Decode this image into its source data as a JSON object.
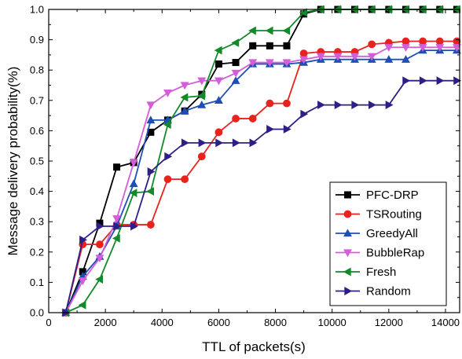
{
  "chart_data": {
    "type": "line",
    "title": "",
    "xlabel": "TTL of packets(s)",
    "ylabel": "Message delivery probability(%)",
    "xlim": [
      0,
      14500
    ],
    "ylim": [
      0,
      1.0
    ],
    "xticks": [
      0,
      2000,
      4000,
      6000,
      8000,
      10000,
      12000,
      14000
    ],
    "yticks": [
      0.0,
      0.1,
      0.2,
      0.3,
      0.4,
      0.5,
      0.6,
      0.7,
      0.8,
      0.9,
      1.0
    ],
    "xtick_labels": [
      "0",
      "2000",
      "4000",
      "6000",
      "8000",
      "10000",
      "12000",
      "14000"
    ],
    "ytick_labels": [
      "0.0",
      "0.1",
      "0.2",
      "0.3",
      "0.4",
      "0.5",
      "0.6",
      "0.7",
      "0.8",
      "0.9",
      "1.0"
    ],
    "grid": false,
    "legend_position": "bottom-right",
    "x": [
      600,
      1200,
      1800,
      2400,
      3000,
      3600,
      4200,
      4800,
      5400,
      6000,
      6600,
      7200,
      7800,
      8400,
      9000,
      9600,
      10200,
      10800,
      11400,
      12000,
      12600,
      13200,
      13800,
      14400
    ],
    "series": [
      {
        "name": "PFC-DRP",
        "color": "#000000",
        "marker": "square",
        "values": [
          0,
          0.135,
          0.295,
          0.48,
          0.495,
          0.595,
          0.635,
          0.665,
          0.72,
          0.82,
          0.825,
          0.88,
          0.88,
          0.88,
          0.985,
          1.0,
          1.0,
          1.0,
          1.0,
          1.0,
          1.0,
          1.0,
          1.0,
          1.0
        ]
      },
      {
        "name": "TSRouting",
        "color": "#e8231d",
        "marker": "circle",
        "values": [
          0,
          0.225,
          0.225,
          0.29,
          0.29,
          0.29,
          0.44,
          0.44,
          0.515,
          0.595,
          0.64,
          0.64,
          0.69,
          0.69,
          0.855,
          0.86,
          0.86,
          0.86,
          0.885,
          0.89,
          0.895,
          0.895,
          0.895,
          0.895
        ]
      },
      {
        "name": "GreedyAll",
        "color": "#1f4fb4",
        "marker": "triangle-up",
        "values": [
          0,
          0.12,
          0.185,
          0.285,
          0.425,
          0.635,
          0.635,
          0.665,
          0.685,
          0.7,
          0.765,
          0.82,
          0.82,
          0.82,
          0.825,
          0.835,
          0.835,
          0.835,
          0.835,
          0.835,
          0.835,
          0.865,
          0.865,
          0.865
        ]
      },
      {
        "name": "BubbleRap",
        "color": "#d45ed9",
        "marker": "triangle-down",
        "values": [
          0,
          0.105,
          0.18,
          0.31,
          0.495,
          0.685,
          0.725,
          0.75,
          0.765,
          0.765,
          0.79,
          0.825,
          0.825,
          0.825,
          0.835,
          0.845,
          0.845,
          0.845,
          0.845,
          0.875,
          0.875,
          0.875,
          0.875,
          0.875
        ]
      },
      {
        "name": "Fresh",
        "color": "#128a2a",
        "marker": "triangle-left",
        "values": [
          0,
          0.025,
          0.11,
          0.245,
          0.395,
          0.4,
          0.62,
          0.71,
          0.715,
          0.865,
          0.89,
          0.93,
          0.93,
          0.93,
          0.99,
          1.0,
          1.0,
          1.0,
          1.0,
          1.0,
          1.0,
          1.0,
          1.0,
          1.0
        ]
      },
      {
        "name": "Random",
        "color": "#2e1f86",
        "marker": "triangle-right",
        "values": [
          0,
          0.24,
          0.285,
          0.285,
          0.285,
          0.465,
          0.515,
          0.56,
          0.56,
          0.56,
          0.56,
          0.56,
          0.605,
          0.605,
          0.655,
          0.685,
          0.685,
          0.685,
          0.685,
          0.685,
          0.765,
          0.765,
          0.765,
          0.765
        ]
      }
    ]
  }
}
